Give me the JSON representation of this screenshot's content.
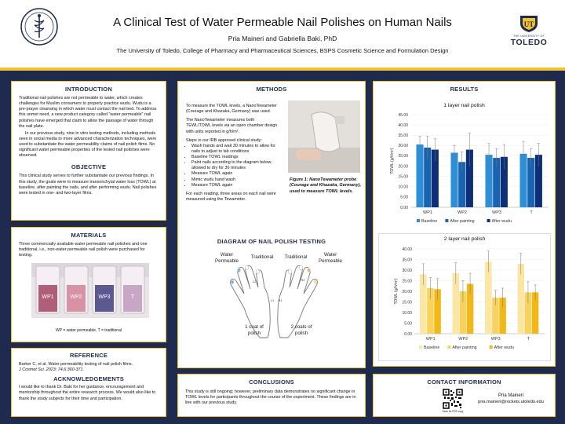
{
  "header": {
    "title": "A Clinical Test of Water Permeable Nail Polishes on Human Nails",
    "authors": "Pria Maineri and Gabriella Baki, PhD",
    "affiliation": "The University of Toledo, College of Pharmacy and Pharmaceutical Sciences, BSPS Cosmetic Science and Formulation Design",
    "logo_small": "THE UNIVERSITY OF",
    "logo_big": "TOLEDO"
  },
  "introduction": {
    "heading": "INTRODUCTION",
    "p1": "Traditional nail polishes are not permeable to water, which creates challenges for Muslim consumers to properly practice wudu. Wudu is a pre-prayer cleansing in which water must contact the nail bed. To address this unmet need, a new product category called \"water permeable\" nail polishes have emerged that claim to allow the passage of water through the nail plate.",
    "p2": "In our previous study, nine in vitro testing methods, including methods seen in social media to more advanced characterization techniques, were used to substantiate the water permeability claims of nail polish films. No significant water permeable properties of the tested nail polishes were observed."
  },
  "objective": {
    "heading": "OBJECTIVE",
    "text": "This clinical study serves to further substantiate our previous findings. In this study, the goals were to measure transonchyial water loss (TOWL) at baseline, after painting the nails, and after performing wudu. Nail polishes were tested in one- and two-layer films."
  },
  "materials": {
    "heading": "MATERIALS",
    "text": "Three commercially available water permeable nail polishes and one traditional, i.e., non-water permeable nail polish were purchased for testing.",
    "bottle_labels": [
      "WP1",
      "WP2",
      "WP3",
      "T"
    ],
    "legend": "WP = water permeable, T = traditional"
  },
  "reference": {
    "heading": "REFERENCE",
    "text": "Barker C, et al. Water permeability testing of nail polish films.",
    "journal": "J Cosmet Sci. 2023; 74,6:360-371."
  },
  "acknowledgements": {
    "heading": "ACKNOWLEDGEMENTS",
    "text": "I would like to thank Dr. Baki for her guidance, encouragement and mentorship throughout the entire research process. We would also like to thank the study subjects for their time and participation."
  },
  "methods": {
    "heading": "METHODS",
    "p1": "To measure the TOWL levels, a NanoTewameter (Courage and Khazaka, Germany) was used.",
    "p2": "The NanoTewameter measures both TEWL/TOWL levels via an open chamber design with units reported in g/h/m².",
    "steps_intro": "Steps in our IRB approved clinical study:",
    "steps": [
      "Wash hands and wait 30 minutes to allow for nails to adjust to lab conditions",
      "Baseline TOWL readings",
      "Paint nails according to the diagram below; allowed to dry for 30 minutes",
      "Measure TOWL again",
      "Mimic wudu hand wash",
      "Measure TOWL again"
    ],
    "p3": "For each reading, three areas on each nail were measured using the Tewameter.",
    "figure_caption": "Figure 1: NanoTewameter probe (Courage and Khazaka, Germany), used to measure TOWL levels."
  },
  "diagram": {
    "heading": "DIAGRAM OF NAIL POLISH TESTING",
    "labels": {
      "wp_left": "Water\nPermeable",
      "trad_left": "Traditional",
      "trad_right": "Traditional",
      "wp_right": "Water\nPermeable",
      "coat1": "1 coat of\npolish",
      "coat2": "2 coats of\npolish",
      "l1": "L1",
      "l2": "L2",
      "r1": "R1",
      "r2": "R2",
      "n1": "1",
      "n2": "2",
      "n3": "3"
    }
  },
  "results": {
    "heading": "RESULTS"
  },
  "conclusions": {
    "heading": "CONCLUSIONS",
    "text": "This study is still ongoing; however, preliminary data demonstrates no significant change in TOWL levels for participants throughout the course of the experiment. These findings are in line with our previous study."
  },
  "contact": {
    "heading": "CONTACT INFORMATION",
    "name": "Pria Maineri",
    "email": "pria.maineri@rockets.utoledo.edu",
    "qr_caption": "Scan for PDF copy"
  },
  "colors": {
    "navy": "#1f2b4e",
    "gold": "#f2c230",
    "blue_baseline": "#2e8fd6",
    "blue_painting": "#1a63b0",
    "blue_wudu": "#0d2f78",
    "yellow_baseline": "#fbe6a4",
    "yellow_painting": "#f7d25c",
    "yellow_wudu": "#f1b818"
  },
  "chart_data": [
    {
      "type": "bar",
      "title": "1 layer nail polish",
      "ylabel": "TOWL (g/h/m²)",
      "xlabel": "",
      "categories": [
        "WP1",
        "WP2",
        "WP3",
        "T"
      ],
      "ylim": [
        0,
        45
      ],
      "yticks": [
        "0.00",
        "5.00",
        "10.00",
        "15.00",
        "20.00",
        "25.00",
        "30.00",
        "35.00",
        "40.00",
        "45.00"
      ],
      "series": [
        {
          "name": "Baseline",
          "values": [
            30.5,
            26.5,
            25.5,
            26.0
          ],
          "errors": [
            4.0,
            3.5,
            5.5,
            6.0
          ],
          "color": "#2e8fd6"
        },
        {
          "name": "After painting",
          "values": [
            29.0,
            22.0,
            24.0,
            24.0
          ],
          "errors": [
            5.5,
            5.0,
            4.5,
            4.5
          ],
          "color": "#1a63b0"
        },
        {
          "name": "After wudu",
          "values": [
            28.0,
            28.0,
            24.5,
            25.5
          ],
          "errors": [
            5.5,
            8.0,
            6.0,
            5.5
          ],
          "color": "#0d2f78"
        }
      ],
      "legend": "bottom"
    },
    {
      "type": "bar",
      "title": "2 layer nail polish",
      "ylabel": "TOWL (g/h/m²)",
      "xlabel": "",
      "categories": [
        "WP1",
        "WP2",
        "WP3",
        "T"
      ],
      "ylim": [
        0,
        40
      ],
      "yticks": [
        "0.00",
        "5.00",
        "10.00",
        "15.00",
        "20.00",
        "25.00",
        "30.00",
        "35.00",
        "40.00"
      ],
      "series": [
        {
          "name": "Baseline",
          "values": [
            28.0,
            28.5,
            34.0,
            33.0
          ],
          "errors": [
            5.0,
            5.0,
            5.0,
            5.0
          ],
          "color": "#fbe6a4"
        },
        {
          "name": "After painting",
          "values": [
            21.5,
            20.0,
            17.0,
            19.5
          ],
          "errors": [
            5.0,
            5.0,
            3.5,
            5.0
          ],
          "color": "#f7d25c"
        },
        {
          "name": "After wudu",
          "values": [
            21.0,
            23.5,
            17.0,
            19.5
          ],
          "errors": [
            5.0,
            5.0,
            4.5,
            3.5
          ],
          "color": "#f1b818"
        }
      ],
      "legend": "bottom"
    }
  ]
}
